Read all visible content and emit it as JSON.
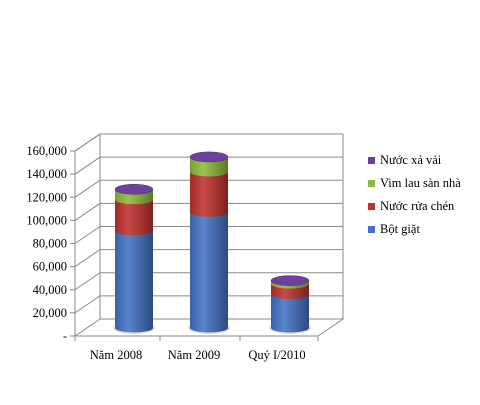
{
  "chart_data": {
    "type": "bar",
    "stacked": true,
    "three_d": true,
    "categories": [
      "Năm 2008",
      "Năm 2009",
      "Quý I/2010"
    ],
    "series": [
      {
        "name": "Bột giặt",
        "color": "#4472C4",
        "values": [
          84000,
          100000,
          29000
        ]
      },
      {
        "name": "Nước rửa chén",
        "color": "#C0312E",
        "values": [
          27000,
          35000,
          9000
        ]
      },
      {
        "name": "Vim lau sàn nhà",
        "color": "#8CBB3C",
        "values": [
          9000,
          13000,
          3000
        ]
      },
      {
        "name": "Nước xả vải",
        "color": "#6F3FA0",
        "values": [
          0,
          0,
          0
        ]
      }
    ],
    "y_tick_labels": [
      "-",
      "20,000",
      "40,000",
      "60,000",
      "80,000",
      "100,000",
      "120,000",
      "140,000",
      "160,000"
    ],
    "ylim": [
      0,
      160000
    ],
    "grid": true,
    "legend_position": "right",
    "title": "",
    "xlabel": "",
    "ylabel": ""
  }
}
